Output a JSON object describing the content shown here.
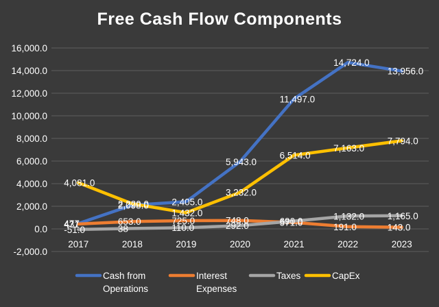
{
  "chart_data": {
    "type": "line",
    "title": "Free Cash Flow Components",
    "categories": [
      "2017",
      "2018",
      "2019",
      "2020",
      "2021",
      "2022",
      "2023"
    ],
    "ylim": [
      -2000,
      16000
    ],
    "yticks": [
      -2000,
      0,
      2000,
      4000,
      6000,
      8000,
      10000,
      12000,
      14000,
      16000
    ],
    "ytick_labels": [
      "-2,000.0",
      "0.0",
      "2,000.0",
      "4,000.0",
      "6,000.0",
      "8,000.0",
      "10,000.0",
      "12,000.0",
      "14,000.0",
      "16,000.0"
    ],
    "grid": true,
    "legend_position": "bottom",
    "series": [
      {
        "name": "Cash from Operations",
        "legend_lines": [
          "Cash from",
          "Operations"
        ],
        "color": "#4472c4",
        "values": [
          477,
          2098,
          2405,
          5943,
          11497,
          14724,
          13956
        ],
        "labels": [
          "477",
          "2,098.0",
          "2,405.0",
          "5,943.0",
          "11,497.0",
          "14,724.0",
          "13,956.0"
        ]
      },
      {
        "name": "Interest Expenses",
        "legend_lines": [
          "Interest",
          "Expenses"
        ],
        "color": "#ed7d31",
        "values": [
          431,
          653,
          725,
          748,
          571,
          191,
          143
        ],
        "labels": [
          "431",
          "653.0",
          "725.0",
          "748.0",
          "571.0",
          "191.0",
          "143.0"
        ]
      },
      {
        "name": "Taxes",
        "legend_lines": [
          "Taxes"
        ],
        "color": "#a5a5a5",
        "values": [
          -51,
          38,
          110,
          292,
          690,
          1132,
          1165
        ],
        "labels": [
          "-51.0",
          "38",
          "110.0",
          "292.0",
          "690.0",
          "1,132.0",
          "1,165.0"
        ]
      },
      {
        "name": "CapEx",
        "legend_lines": [
          "CapEx"
        ],
        "color": "#ffc000",
        "values": [
          4081,
          2220,
          1432,
          3232,
          6514,
          7163,
          7794
        ],
        "labels": [
          "4,081.0",
          "2,220.0",
          "1,432.0",
          "3,232.0",
          "6,514.0",
          "7,163.0",
          "7,794.0"
        ]
      }
    ]
  }
}
